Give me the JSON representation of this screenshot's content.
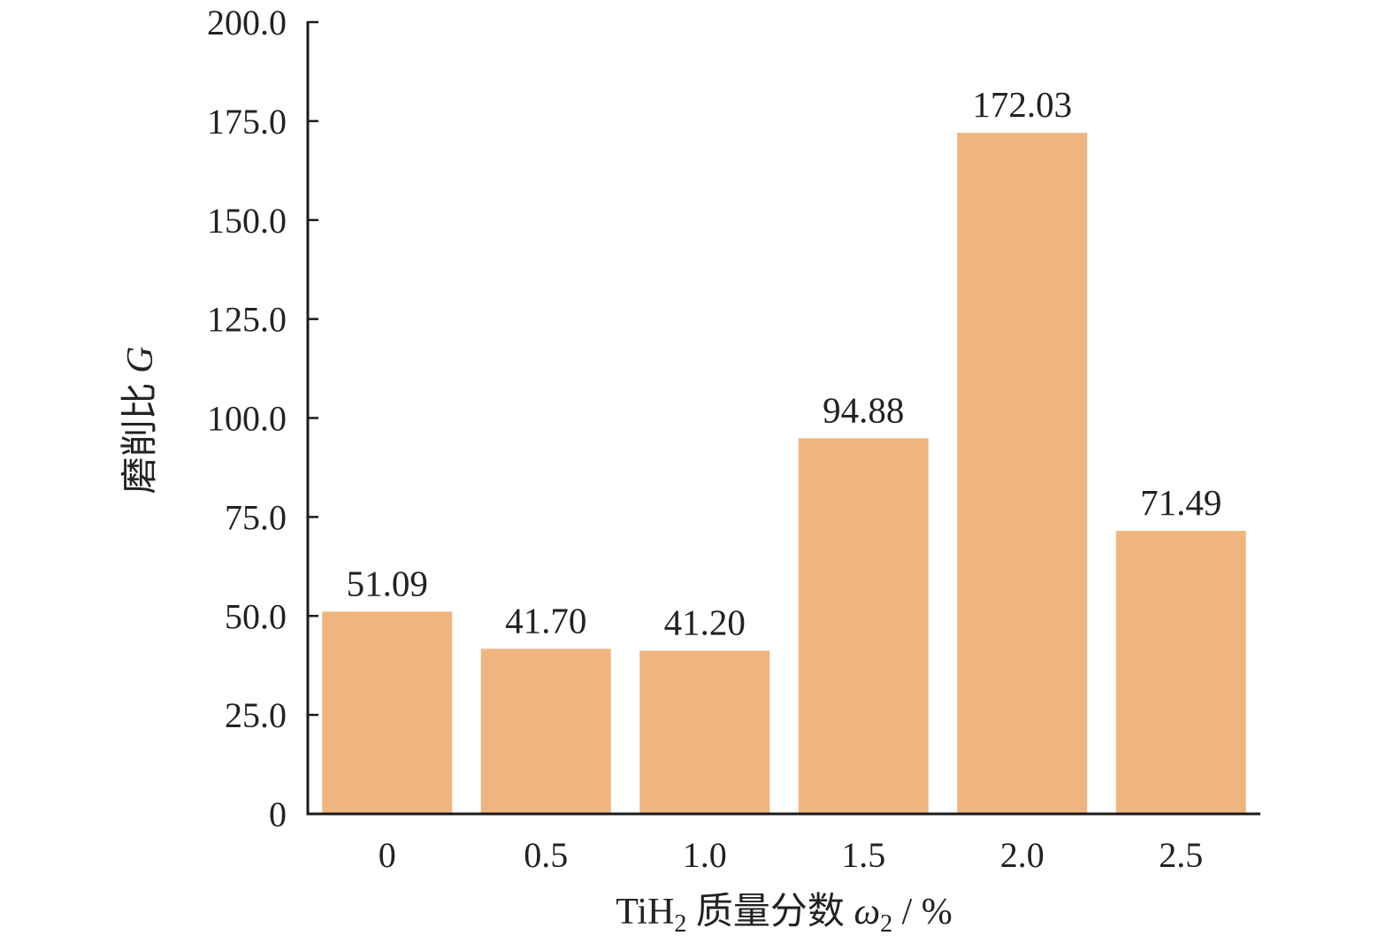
{
  "chart_data": {
    "type": "bar",
    "categories": [
      "0",
      "0.5",
      "1.0",
      "1.5",
      "2.0",
      "2.5"
    ],
    "values": [
      51.09,
      41.7,
      41.2,
      94.88,
      172.03,
      71.49
    ],
    "data_labels": [
      "51.09",
      "41.70",
      "41.20",
      "94.88",
      "172.03",
      "71.49"
    ],
    "yticks": [
      0,
      25,
      50,
      75,
      100,
      125,
      150,
      175,
      200
    ],
    "ytick_labels": [
      "0",
      "25.0",
      "50.0",
      "75.0",
      "100.0",
      "125.0",
      "150.0",
      "175.0",
      "200.0"
    ],
    "ylim": [
      0,
      200
    ],
    "title": "",
    "xlabel": {
      "prefix": "TiH",
      "prefix_sub": "2",
      "middle": " 质量分数 ",
      "symbol": "ω",
      "symbol_sub": "2",
      "suffix": " / %"
    },
    "ylabel": {
      "text": "磨削比 ",
      "symbol": "G"
    },
    "grid": false,
    "legend": "none",
    "bar_color": "#F0B57F"
  }
}
